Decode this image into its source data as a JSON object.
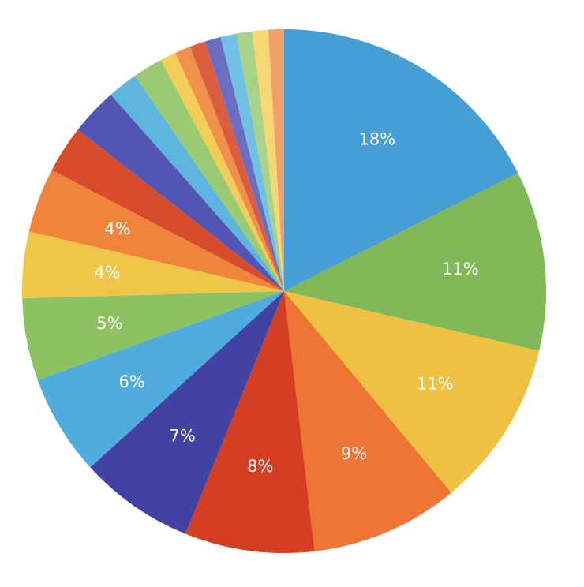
{
  "chart_data": {
    "type": "pie",
    "start_angle_deg": 0,
    "direction": "clockwise",
    "slices": [
      {
        "value": 18.0,
        "label": "18%",
        "color": "#469FD4"
      },
      {
        "value": 11.4,
        "label": "11%",
        "color": "#82B958"
      },
      {
        "value": 10.6,
        "label": "11%",
        "color": "#EFC142"
      },
      {
        "value": 9.4,
        "label": "9%",
        "color": "#EE7533"
      },
      {
        "value": 8.2,
        "label": "8%",
        "color": "#D43E22"
      },
      {
        "value": 7.3,
        "label": "7%",
        "color": "#4242A3"
      },
      {
        "value": 6.4,
        "label": "6%",
        "color": "#4FACDC"
      },
      {
        "value": 5.2,
        "label": "5%",
        "color": "#8DC263"
      },
      {
        "value": 4.2,
        "label": "4%",
        "color": "#EFC648"
      },
      {
        "value": 4.1,
        "label": "4%",
        "color": "#EF843B"
      },
      {
        "value": 3.0,
        "label": "",
        "color": "#D84C2E"
      },
      {
        "value": 3.0,
        "label": "",
        "color": "#5255B3"
      },
      {
        "value": 1.9,
        "label": "",
        "color": "#5DB5E0"
      },
      {
        "value": 1.9,
        "label": "",
        "color": "#9ACB73"
      },
      {
        "value": 1.0,
        "label": "",
        "color": "#F2CD58"
      },
      {
        "value": 1.0,
        "label": "",
        "color": "#F0914B"
      },
      {
        "value": 1.0,
        "label": "",
        "color": "#DA5E3E"
      },
      {
        "value": 1.0,
        "label": "",
        "color": "#6A6DC0"
      },
      {
        "value": 1.0,
        "label": "",
        "color": "#71C0E6"
      },
      {
        "value": 1.0,
        "label": "",
        "color": "#A7D287"
      },
      {
        "value": 1.0,
        "label": "",
        "color": "#F5D874"
      },
      {
        "value": 1.0,
        "label": "",
        "color": "#F2A068"
      }
    ]
  }
}
